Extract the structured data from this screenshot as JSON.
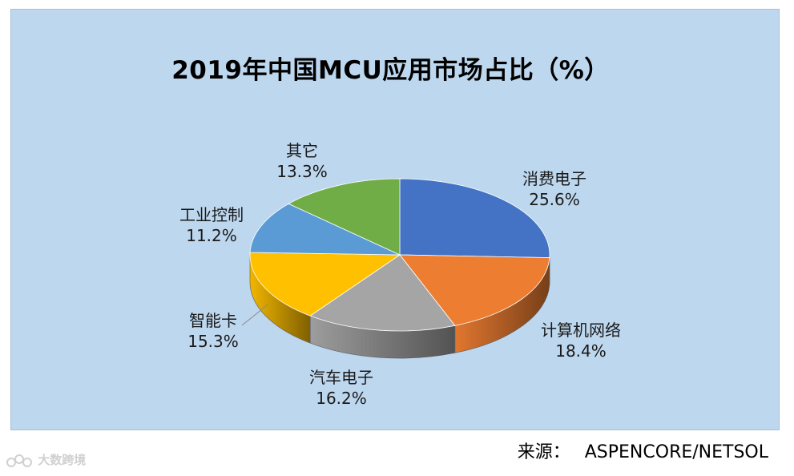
{
  "chart_data": {
    "type": "pie",
    "title": "2019年中国MCU应用市场占比（%）",
    "slices": [
      {
        "label": "消费电子",
        "value": 25.6,
        "value_label": "25.6%",
        "color": "#4472c4"
      },
      {
        "label": "计算机网络",
        "value": 18.4,
        "value_label": "18.4%",
        "color": "#ed7d31"
      },
      {
        "label": "汽车电子",
        "value": 16.2,
        "value_label": "16.2%",
        "color": "#a5a5a5"
      },
      {
        "label": "智能卡",
        "value": 15.3,
        "value_label": "15.3%",
        "color": "#ffc000"
      },
      {
        "label": "工业控制",
        "value": 11.2,
        "value_label": "11.2%",
        "color": "#5b9bd5"
      },
      {
        "label": "其它",
        "value": 13.3,
        "value_label": "13.3%",
        "color": "#70ad47"
      }
    ],
    "style": "3d"
  },
  "source": {
    "prefix": "来源：",
    "text": "ASPENCORE/NETSOL"
  },
  "watermark": {
    "text": "大数跨境"
  }
}
